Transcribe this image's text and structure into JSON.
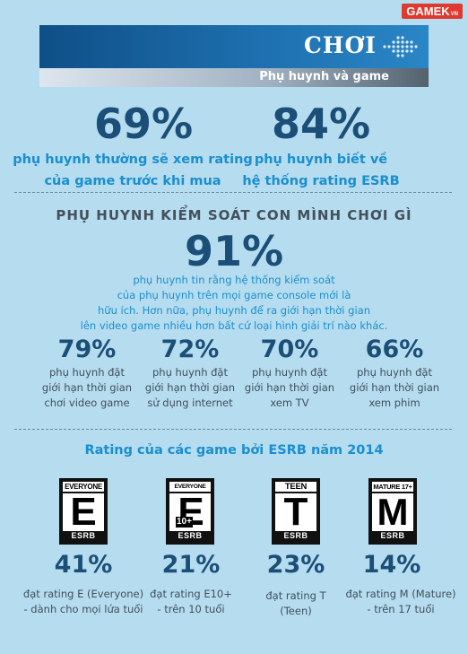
{
  "brand": {
    "name": "GAMEK",
    "suffix": "VN"
  },
  "header": {
    "title": "CHƠI",
    "subtitle": "Phụ huynh và game"
  },
  "top_stats": [
    {
      "value": "69%",
      "desc": "phụ huynh thường sẽ xem rating\ncủa game trước khi mua"
    },
    {
      "value": "84%",
      "desc": "phụ huynh biết về\nhệ thống rating ESRB"
    }
  ],
  "section": {
    "title": "PHỤ HUYNH KIỂM SOÁT CON MÌNH CHƠI GÌ"
  },
  "main_stat": {
    "value": "91%",
    "lines": [
      "phụ huynh tin rằng hệ thống kiểm soát",
      "của phụ huynh trên mọi game console mới là",
      "hữu ích. Hơn nữa, phụ huynh để ra giới hạn thời gian",
      "lên video game nhiều hơn bất cứ loại hình giải trí nào khác."
    ]
  },
  "limit_stats": [
    {
      "value": "79%",
      "desc": "phụ huynh đặt\ngiới hạn thời gian\nchơi video game"
    },
    {
      "value": "72%",
      "desc": "phụ huynh đặt\ngiới hạn thời gian\nsử dụng internet"
    },
    {
      "value": "70%",
      "desc": "phụ huynh đặt\ngiới hạn thời gian\nxem TV"
    },
    {
      "value": "66%",
      "desc": "phụ huynh đặt\ngiới hạn thời gian\nxem phim"
    }
  ],
  "ratings_section": {
    "title": "Rating của các game bởi ESRB năm 2014"
  },
  "ratings": [
    {
      "badge_top": "EVERYONE",
      "badge_letter": "E",
      "badge_sup": "",
      "badge_bottom": "ESRB",
      "value": "41%",
      "desc": "đạt rating E (Everyone)\n- dành cho mọi lứa tuổi"
    },
    {
      "badge_top": "EVERYONE 10+",
      "badge_letter": "E",
      "badge_sup": "10+",
      "badge_bottom": "ESRB",
      "value": "21%",
      "desc": "đạt rating E10+\n- trên 10 tuổi"
    },
    {
      "badge_top": "TEEN",
      "badge_letter": "T",
      "badge_sup": "",
      "badge_bottom": "ESRB",
      "value": "23%",
      "desc": "đạt rating T\n(Teen)"
    },
    {
      "badge_top": "MATURE 17+",
      "badge_letter": "M",
      "badge_sup": "",
      "badge_bottom": "ESRB",
      "value": "14%",
      "desc": "đạt rating M (Mature)\n- trên 17 tuổi"
    }
  ],
  "colors": {
    "background": "#b6dcef",
    "accent_blue": "#1a8fcf",
    "dark_blue": "#1b4f78",
    "brand_red": "#e03a2f"
  }
}
